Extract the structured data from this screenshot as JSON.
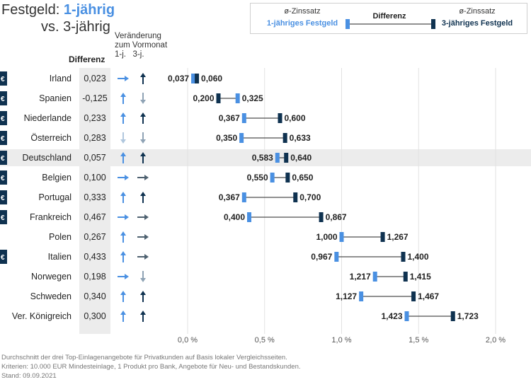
{
  "title": {
    "prefix": "Festgeld: ",
    "highlight1": "1-jährig",
    "line2_prefix": "vs. ",
    "highlight3": "3-jährig"
  },
  "legend": {
    "left_top": "ø-Zinssatz",
    "left_bottom": "1-jähriges Festgeld",
    "middle": "Differenz",
    "right_top": "ø-Zinssatz",
    "right_bottom": "3-jähriges Festgeld"
  },
  "headers": {
    "change_line1": "Veränderung",
    "change_line2": "zum Vormonat",
    "change_line3": "1-j.   3-j.",
    "difference": "Differenz"
  },
  "footer": {
    "line1": "Durchschnitt der drei Top-Einlagenangebote für Privatkunden auf Basis lokaler Vergleichsseiten.",
    "line2": "Kriterien: 10.000 EUR Mindesteinlage, 1 Produkt pro Bank, Angebote für Neu- und Bestandskunden.",
    "line3": "Stand: 09.09.2021"
  },
  "colors": {
    "one_year": "#4a90e2",
    "three_year": "#0f3250",
    "arrow_light": "#4a90e2",
    "arrow_dark": "#0f3250",
    "arrow_gray_light": "#b0c7de",
    "arrow_gray_dark": "#8fa3b5",
    "arrow_right_dark": "#4e6170"
  },
  "chart_data": {
    "type": "dumbbell",
    "x_ticks": [
      "0,0 %",
      "0,5 %",
      "1,0 %",
      "1,5 %",
      "2,0 %"
    ],
    "xlim": [
      0,
      2.0
    ],
    "series": [
      {
        "name": "1-jähriges Festgeld"
      },
      {
        "name": "3-jähriges Festgeld"
      }
    ],
    "rows": [
      {
        "country": "Irland",
        "euro": true,
        "diff": "0,023",
        "one_year": 0.037,
        "three_year": 0.06,
        "one_label": "0,037",
        "three_label": "0,060",
        "chg1": "right",
        "chg3": "up"
      },
      {
        "country": "Spanien",
        "euro": true,
        "diff": "-0,125",
        "one_year": 0.325,
        "three_year": 0.2,
        "one_label": "0,325",
        "three_label": "0,200",
        "chg1": "up",
        "chg3": "down-gray"
      },
      {
        "country": "Niederlande",
        "euro": true,
        "diff": "0,233",
        "one_year": 0.367,
        "three_year": 0.6,
        "one_label": "0,367",
        "three_label": "0,600",
        "chg1": "up",
        "chg3": "up"
      },
      {
        "country": "Österreich",
        "euro": true,
        "diff": "0,283",
        "one_year": 0.35,
        "three_year": 0.633,
        "one_label": "0,350",
        "three_label": "0,633",
        "chg1": "down-light",
        "chg3": "down-gray"
      },
      {
        "country": "Deutschland",
        "euro": true,
        "diff": "0,057",
        "one_year": 0.583,
        "three_year": 0.64,
        "one_label": "0,583",
        "three_label": "0,640",
        "chg1": "up",
        "chg3": "up",
        "highlight": true
      },
      {
        "country": "Belgien",
        "euro": true,
        "diff": "0,100",
        "one_year": 0.55,
        "three_year": 0.65,
        "one_label": "0,550",
        "three_label": "0,650",
        "chg1": "right",
        "chg3": "right-dark"
      },
      {
        "country": "Portugal",
        "euro": true,
        "diff": "0,333",
        "one_year": 0.367,
        "three_year": 0.7,
        "one_label": "0,367",
        "three_label": "0,700",
        "chg1": "up",
        "chg3": "up"
      },
      {
        "country": "Frankreich",
        "euro": true,
        "diff": "0,467",
        "one_year": 0.4,
        "three_year": 0.867,
        "one_label": "0,400",
        "three_label": "0,867",
        "chg1": "right",
        "chg3": "right-dark"
      },
      {
        "country": "Polen",
        "euro": false,
        "diff": "0,267",
        "one_year": 1.0,
        "three_year": 1.267,
        "one_label": "1,000",
        "three_label": "1,267",
        "chg1": "up",
        "chg3": "right-dark"
      },
      {
        "country": "Italien",
        "euro": true,
        "diff": "0,433",
        "one_year": 0.967,
        "three_year": 1.4,
        "one_label": "0,967",
        "three_label": "1,400",
        "chg1": "up",
        "chg3": "right-dark"
      },
      {
        "country": "Norwegen",
        "euro": false,
        "diff": "0,198",
        "one_year": 1.217,
        "three_year": 1.415,
        "one_label": "1,217",
        "three_label": "1,415",
        "chg1": "right",
        "chg3": "down-gray"
      },
      {
        "country": "Schweden",
        "euro": false,
        "diff": "0,340",
        "one_year": 1.127,
        "three_year": 1.467,
        "one_label": "1,127",
        "three_label": "1,467",
        "chg1": "up",
        "chg3": "up"
      },
      {
        "country": "Ver. Königreich",
        "euro": false,
        "diff": "0,300",
        "one_year": 1.423,
        "three_year": 1.723,
        "one_label": "1,423",
        "three_label": "1,723",
        "chg1": "up",
        "chg3": "up"
      }
    ],
    "euro_symbol": "€"
  }
}
